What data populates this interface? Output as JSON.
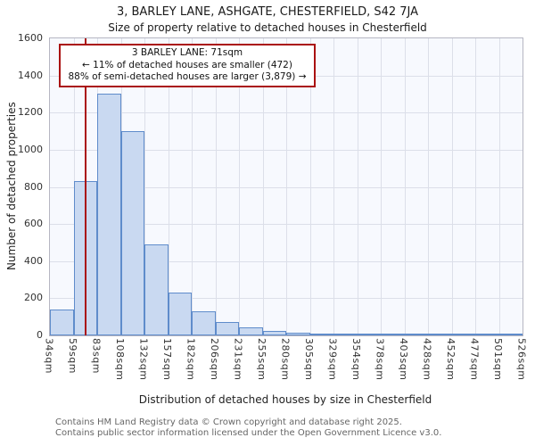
{
  "title": "3, BARLEY LANE, ASHGATE, CHESTERFIELD, S42 7JA",
  "subtitle": "Size of property relative to detached houses in Chesterfield",
  "chart_data": {
    "type": "bar",
    "title": "3, BARLEY LANE, ASHGATE, CHESTERFIELD, S42 7JA",
    "subtitle": "Size of property relative to detached houses in Chesterfield",
    "categories": [
      "34sqm",
      "59sqm",
      "83sqm",
      "108sqm",
      "132sqm",
      "157sqm",
      "182sqm",
      "206sqm",
      "231sqm",
      "255sqm",
      "280sqm",
      "305sqm",
      "329sqm",
      "354sqm",
      "378sqm",
      "403sqm",
      "428sqm",
      "452sqm",
      "477sqm",
      "501sqm",
      "526sqm"
    ],
    "tick_values": [
      34,
      59,
      83,
      108,
      132,
      157,
      182,
      206,
      231,
      255,
      280,
      305,
      329,
      354,
      378,
      403,
      428,
      452,
      477,
      501,
      526
    ],
    "values": [
      140,
      830,
      1300,
      1100,
      490,
      230,
      130,
      70,
      45,
      25,
      15,
      12,
      8,
      5,
      5,
      5,
      2,
      1,
      1,
      1
    ],
    "xlabel": "Distribution of detached houses by size in Chesterfield",
    "ylabel": "Number of detached properties",
    "ylim": [
      0,
      1600
    ],
    "yticks": [
      0,
      200,
      400,
      600,
      800,
      1000,
      1200,
      1400,
      1600
    ],
    "grid": true,
    "legend": "none",
    "marker": {
      "sqm": 71,
      "color": "#aa1111"
    },
    "bar_fill": "#c9d9f1",
    "bar_stroke": "#5f8ccb"
  },
  "annotation": {
    "line1": "3 BARLEY LANE: 71sqm",
    "line2": "← 11% of detached houses are smaller (472)",
    "line3": "88% of semi-detached houses are larger (3,879) →"
  },
  "footer": {
    "line1": "Contains HM Land Registry data © Crown copyright and database right 2025.",
    "line2": "Contains public sector information licensed under the Open Government Licence v3.0."
  }
}
